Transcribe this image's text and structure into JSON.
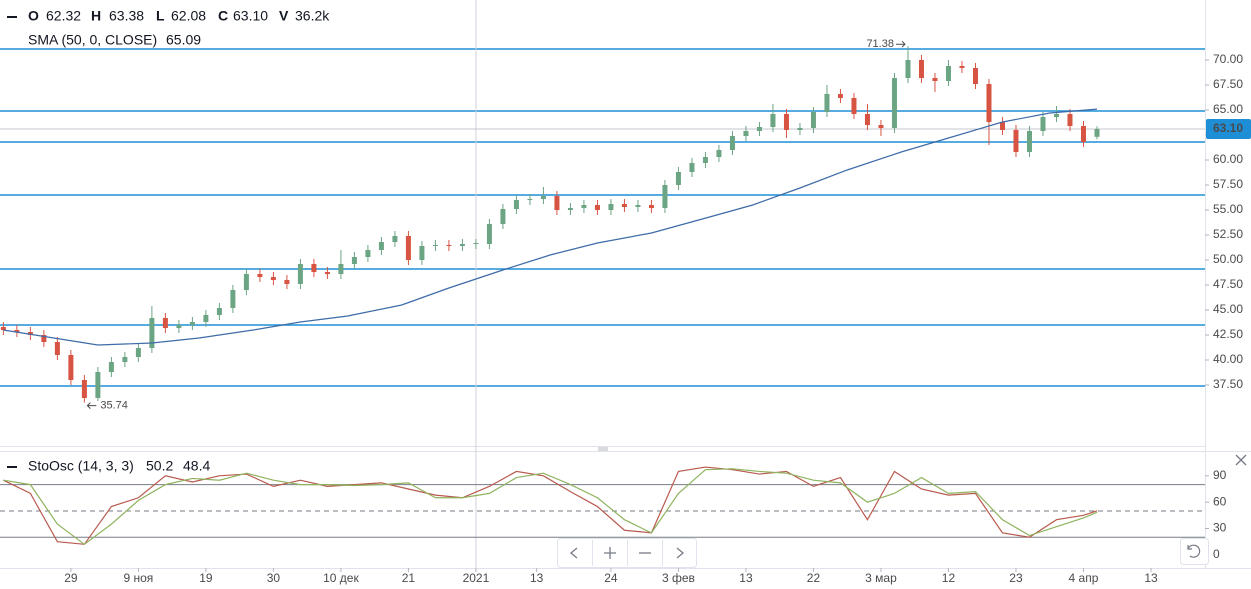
{
  "chart_data": [
    {
      "type": "candlestick",
      "ohlc_labels": [
        "O",
        "H",
        "L",
        "C",
        "V"
      ],
      "last_label": "63.10",
      "volume_label": "36.2k",
      "up_color": "#6ba583",
      "down_color": "#d75442",
      "x": [
        0,
        2,
        4,
        6,
        8,
        10,
        12,
        14,
        16,
        18,
        20,
        22,
        24,
        26,
        28,
        30,
        32,
        34,
        36,
        38,
        40,
        42,
        44,
        46,
        48,
        50,
        52,
        54,
        56,
        58,
        60,
        62,
        64,
        66,
        68,
        70,
        72,
        74,
        76,
        78,
        80,
        82,
        84,
        86,
        88,
        90,
        92,
        94,
        96,
        98,
        100,
        102,
        104,
        106,
        108,
        110,
        112,
        114,
        116,
        118,
        120,
        122,
        124,
        126,
        128,
        130,
        132,
        134,
        136,
        138,
        140,
        142,
        144,
        146,
        148,
        150,
        152,
        154,
        156,
        158,
        160,
        162
      ],
      "open": [
        43.3,
        43,
        42.8,
        42.5,
        41.8,
        40.5,
        38,
        36.2,
        38.8,
        39.8,
        40.3,
        41.2,
        44.2,
        43.2,
        43.5,
        43.8,
        44.5,
        45.2,
        47,
        48.6,
        48.3,
        48,
        47.6,
        49.6,
        48.8,
        48.6,
        49.6,
        50.3,
        51,
        51.8,
        52.4,
        50,
        51.4,
        51.5,
        51.4,
        51.6,
        51.6,
        53.6,
        55.1,
        56,
        56.1,
        56.4,
        55,
        55.2,
        55.5,
        55,
        55.6,
        55.3,
        55.5,
        55.2,
        57.5,
        58.8,
        59.7,
        60.3,
        61,
        62.4,
        62.9,
        63.3,
        64.6,
        63,
        63.2,
        64.8,
        66.6,
        66.2,
        64.6,
        63.5,
        63.2,
        68.2,
        70,
        68.2,
        67.9,
        69.4,
        69.2,
        67.6,
        63.8,
        63,
        60.8,
        62.9,
        64.3,
        64.6,
        63.4,
        62.32
      ],
      "high": [
        43.8,
        43.5,
        43.3,
        43,
        42.3,
        41,
        38.5,
        39.3,
        40.3,
        40.8,
        41.7,
        45.4,
        44.7,
        44,
        44.3,
        45,
        45.7,
        47.5,
        49.1,
        49.1,
        48.8,
        48.5,
        50.1,
        50.1,
        49.3,
        51,
        50.8,
        51.5,
        52.3,
        52.9,
        52.9,
        51.9,
        52,
        52,
        52.1,
        52.1,
        54.1,
        55.6,
        56.5,
        56.6,
        57.3,
        56.9,
        55.7,
        56,
        56,
        56.1,
        56.1,
        56,
        56,
        58,
        59.3,
        60.2,
        60.8,
        61.5,
        62.9,
        63.4,
        63.8,
        65.6,
        65.1,
        63.7,
        65.3,
        67.5,
        67.1,
        66.7,
        65.6,
        64,
        68.7,
        71.38,
        70.5,
        68.7,
        70,
        69.9,
        69.7,
        68.1,
        64.3,
        63.5,
        63.4,
        64.8,
        65.4,
        65.1,
        63.9,
        63.38
      ],
      "low": [
        42.5,
        42.3,
        42,
        41.3,
        40,
        37.5,
        35.74,
        35.9,
        38.3,
        39.3,
        39.8,
        40.7,
        42.7,
        42.7,
        43,
        43.3,
        44,
        44.7,
        46.5,
        47.8,
        47.5,
        47.1,
        47.1,
        48.3,
        48.1,
        48.1,
        49.1,
        49.8,
        50.5,
        51.3,
        49.5,
        49.5,
        50.9,
        50.9,
        50.9,
        51.1,
        51.1,
        53.1,
        54.6,
        55.5,
        55.6,
        54.5,
        54.5,
        54.7,
        54.5,
        54.5,
        54.8,
        54.8,
        54.7,
        54.7,
        57,
        58.3,
        59.2,
        59.8,
        60.5,
        61.9,
        62.4,
        62.8,
        62.2,
        62.5,
        62.7,
        64.3,
        65.7,
        64.1,
        63,
        62.4,
        62.7,
        67.7,
        67.7,
        66.8,
        67.4,
        68.7,
        67.1,
        61.5,
        62.5,
        60.3,
        60.3,
        62.4,
        63.8,
        62.9,
        61.3,
        62.08
      ],
      "close": [
        43,
        42.8,
        42.5,
        41.8,
        40.5,
        38,
        36.2,
        38.8,
        39.8,
        40.3,
        41.2,
        44.2,
        43.2,
        43.5,
        43.8,
        44.5,
        45.2,
        47,
        48.6,
        48.3,
        48,
        47.6,
        49.6,
        48.8,
        48.6,
        49.6,
        50.3,
        51,
        51.8,
        52.4,
        50,
        51.4,
        51.5,
        51.4,
        51.6,
        51.7,
        53.6,
        55.1,
        56,
        56.1,
        56.4,
        55,
        55.2,
        55.5,
        55,
        55.6,
        55.3,
        55.5,
        55.2,
        57.5,
        58.8,
        59.7,
        60.3,
        61,
        62.4,
        62.9,
        63.3,
        64.6,
        63,
        63.2,
        64.8,
        66.6,
        66.2,
        64.6,
        63.5,
        63.2,
        68.2,
        70,
        68.2,
        67.9,
        69.4,
        69.2,
        67.6,
        63.8,
        63,
        60.8,
        62.9,
        64.3,
        64.6,
        63.4,
        61.8,
        63.1
      ],
      "sma": {
        "name": "SMA (50, 0, CLOSE)",
        "color": "#3d6ba8",
        "x": [
          0,
          14,
          22,
          29,
          37,
          44,
          51,
          59,
          66,
          74,
          81,
          88,
          96,
          103,
          111,
          118,
          125,
          133,
          140,
          148,
          155,
          162
        ],
        "values": [
          43,
          41.5,
          41.7,
          42.2,
          43,
          43.8,
          44.4,
          45.5,
          47.2,
          49,
          50.5,
          51.7,
          52.7,
          54,
          55.5,
          57.2,
          59,
          60.8,
          62.2,
          63.8,
          64.7,
          65.09
        ]
      },
      "hlines": [
        71.1,
        64.9,
        61.8,
        56.5,
        49.1,
        43.5,
        37.4
      ],
      "hline_color": "#1e8fd6",
      "vline": 70,
      "annotations": [
        {
          "x": 134,
          "value": 71.38
        },
        {
          "x": 12,
          "value": 35.74
        }
      ],
      "xlim": [
        -0.5,
        178
      ],
      "ylim": [
        31.5,
        76
      ],
      "yticks": [
        {
          "value": 37.5,
          "label": "37.50"
        },
        {
          "value": 40,
          "label": "40.00"
        },
        {
          "value": 42.5,
          "label": "42.50"
        },
        {
          "value": 45,
          "label": "45.00"
        },
        {
          "value": 47.5,
          "label": "47.50"
        },
        {
          "value": 50,
          "label": "50.00"
        },
        {
          "value": 52.5,
          "label": "52.50"
        },
        {
          "value": 55,
          "label": "55.00"
        },
        {
          "value": 57.5,
          "label": "57.50"
        },
        {
          "value": 60,
          "label": "60.00"
        },
        {
          "value": 62.5,
          "label": "62.50"
        },
        {
          "value": 65,
          "label": "65.00"
        },
        {
          "value": 67.5,
          "label": "67.50"
        },
        {
          "value": 70,
          "label": "70.00"
        }
      ]
    },
    {
      "type": "line",
      "title": "StoOsc (14, 3, 3)",
      "x": [
        0,
        4,
        8,
        12,
        16,
        20,
        24,
        28,
        32,
        36,
        40,
        44,
        48,
        52,
        56,
        60,
        64,
        68,
        72,
        76,
        80,
        84,
        88,
        92,
        96,
        100,
        104,
        108,
        112,
        116,
        120,
        124,
        128,
        132,
        136,
        140,
        144,
        148,
        152,
        156,
        160,
        162
      ],
      "series": [
        {
          "color": "#b85a4e",
          "values": [
            85,
            70,
            15,
            12,
            55,
            65,
            90,
            83,
            90,
            92,
            78,
            85,
            78,
            80,
            82,
            75,
            68,
            65,
            78,
            95,
            90,
            72,
            55,
            28,
            25,
            95,
            100,
            97,
            92,
            95,
            78,
            88,
            40,
            95,
            75,
            68,
            70,
            25,
            20,
            40,
            45,
            50.2
          ]
        },
        {
          "color": "#8fb35e",
          "values": [
            85,
            80,
            35,
            12,
            35,
            62,
            80,
            87,
            85,
            93,
            85,
            80,
            80,
            79,
            80,
            82,
            65,
            65,
            70,
            88,
            93,
            80,
            65,
            40,
            25,
            70,
            97,
            98,
            95,
            93,
            85,
            82,
            60,
            70,
            88,
            70,
            72,
            40,
            22,
            32,
            42,
            48.4
          ]
        }
      ],
      "levels": [
        80,
        50,
        20
      ],
      "xlim": [
        -0.5,
        178
      ],
      "ylim": [
        -15,
        116
      ],
      "yticks": [
        0,
        30,
        60,
        90
      ],
      "xticks": [
        {
          "value": 10,
          "label": "29"
        },
        {
          "value": 20,
          "label": "9 ноя"
        },
        {
          "value": 30,
          "label": "19"
        },
        {
          "value": 40,
          "label": "30"
        },
        {
          "value": 50,
          "label": "10 дек"
        },
        {
          "value": 60,
          "label": "21"
        },
        {
          "value": 70,
          "label": "2021"
        },
        {
          "value": 79,
          "label": "13"
        },
        {
          "value": 90,
          "label": "24"
        },
        {
          "value": 100,
          "label": "3 фев"
        },
        {
          "value": 110,
          "label": "13"
        },
        {
          "value": 120,
          "label": "22"
        },
        {
          "value": 130,
          "label": "3 мар"
        },
        {
          "value": 140,
          "label": "12"
        },
        {
          "value": 150,
          "label": "23"
        },
        {
          "value": 160,
          "label": "4 апр"
        },
        {
          "value": 170,
          "label": "13"
        }
      ]
    }
  ]
}
